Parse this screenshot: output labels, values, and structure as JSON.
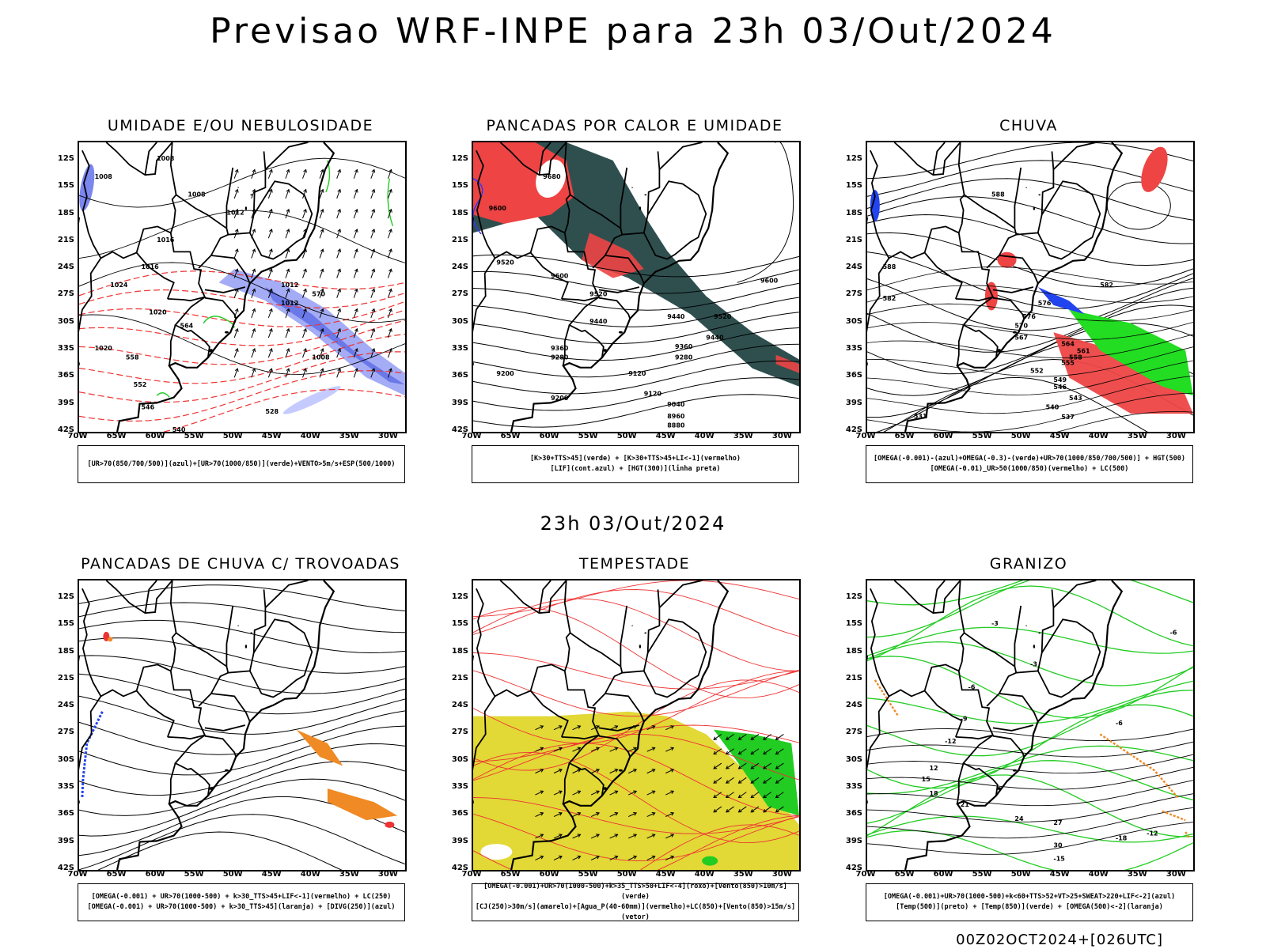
{
  "title": "Previsao WRF-INPE  para 23h 03/Out/2024",
  "middle_title": "23h 03/Out/2024",
  "footer": "00Z02OCT2024+[026UTC]",
  "axes": {
    "lat_labels": [
      "12S",
      "15S",
      "18S",
      "21S",
      "24S",
      "27S",
      "30S",
      "33S",
      "36S",
      "39S",
      "42S"
    ],
    "lon_labels": [
      "70W",
      "65W",
      "60W",
      "55W",
      "50W",
      "45W",
      "40W",
      "35W",
      "30W"
    ]
  },
  "panels": [
    {
      "id": "umidade",
      "title": "UMIDADE E/OU NEBULOSIDADE",
      "legend": [
        "[UR>70(850/700/500)](azul)+[UR>70(1000/850)](verde)+VENTO>5m/s+ESP(500/1000)"
      ],
      "contour_labels": [
        "1008",
        "1008",
        "1008",
        "1012",
        "1016",
        "1016",
        "1020",
        "1020",
        "1024",
        "1012",
        "1008",
        "1012",
        "570",
        "564",
        "558",
        "552",
        "546",
        "540",
        "528"
      ]
    },
    {
      "id": "pancadas-calor",
      "title": "PANCADAS POR CALOR E UMIDADE",
      "legend": [
        "[K>30+TTS>45](verde) + [K>30+TTS>45+LI<-1](vermelho)",
        "[LIF](cont.azul) + [HGT(300)](linha preta)"
      ],
      "contour_labels": [
        "9680",
        "9600",
        "9600",
        "9520",
        "9520",
        "9440",
        "9440",
        "9360",
        "9280",
        "9200",
        "9200",
        "9120",
        "9120",
        "9040",
        "8960",
        "8880",
        "9600",
        "9520",
        "9440",
        "9360",
        "9280"
      ]
    },
    {
      "id": "chuva",
      "title": "CHUVA",
      "legend": [
        "[OMEGA(-0.001)-(azul)+OMEGA(-0.3)-(verde)+UR>70(1000/850/700/500)] + HGT(500)",
        "[OMEGA(-0.01)_UR>50(1000/850)(vermelho) + LC(500)"
      ],
      "contour_labels": [
        "588",
        "582",
        "588",
        "582",
        "576",
        "576",
        "570",
        "567",
        "564",
        "561",
        "558",
        "555",
        "552",
        "549",
        "546",
        "543",
        "540",
        "537",
        "531"
      ]
    },
    {
      "id": "trovoadas",
      "title": "PANCADAS DE CHUVA C/ TROVOADAS",
      "legend": [
        "[OMEGA(-0.001) + UR>70(1000-500) + k>30_TTS>45+LIF<-1](vermelho) + LC(250)",
        "[OMEGA(-0.001) + UR>70(1000-500) + k>30_TTS>45](laranja) + [DIVG(250)](azul)"
      ],
      "contour_labels": []
    },
    {
      "id": "tempestade",
      "title": "TEMPESTADE",
      "legend": [
        "[OMEGA(-0.001)+UR>70(1000-500)+k>35_TTS>50+LIF<-4](roxo)+[Vento(850)>10m/s](verde)",
        "[CJ(250)>30m/s](amarelo)+[Agua_P(40-60mm)](vermelho)+LC(850)+[Vento(850)>15m/s](vetor)"
      ],
      "contour_labels": []
    },
    {
      "id": "granizo",
      "title": "GRANIZO",
      "legend": [
        "[OMEGA(-0.001)+UR>70(1000-500)+k<60+TTS>52+VT>25+SWEAT>220+LIF<-2](azul)",
        "[Temp(500)](preto) + [Temp(850)](verde) + [OMEGA(500)<-2](laranja)"
      ],
      "contour_labels": [
        "-6",
        "-6",
        "-3",
        "-3",
        "-6",
        "-9",
        "-12",
        "12",
        "15",
        "18",
        "21",
        "24",
        "27",
        "30",
        "-15",
        "-18",
        "-12"
      ]
    }
  ]
}
